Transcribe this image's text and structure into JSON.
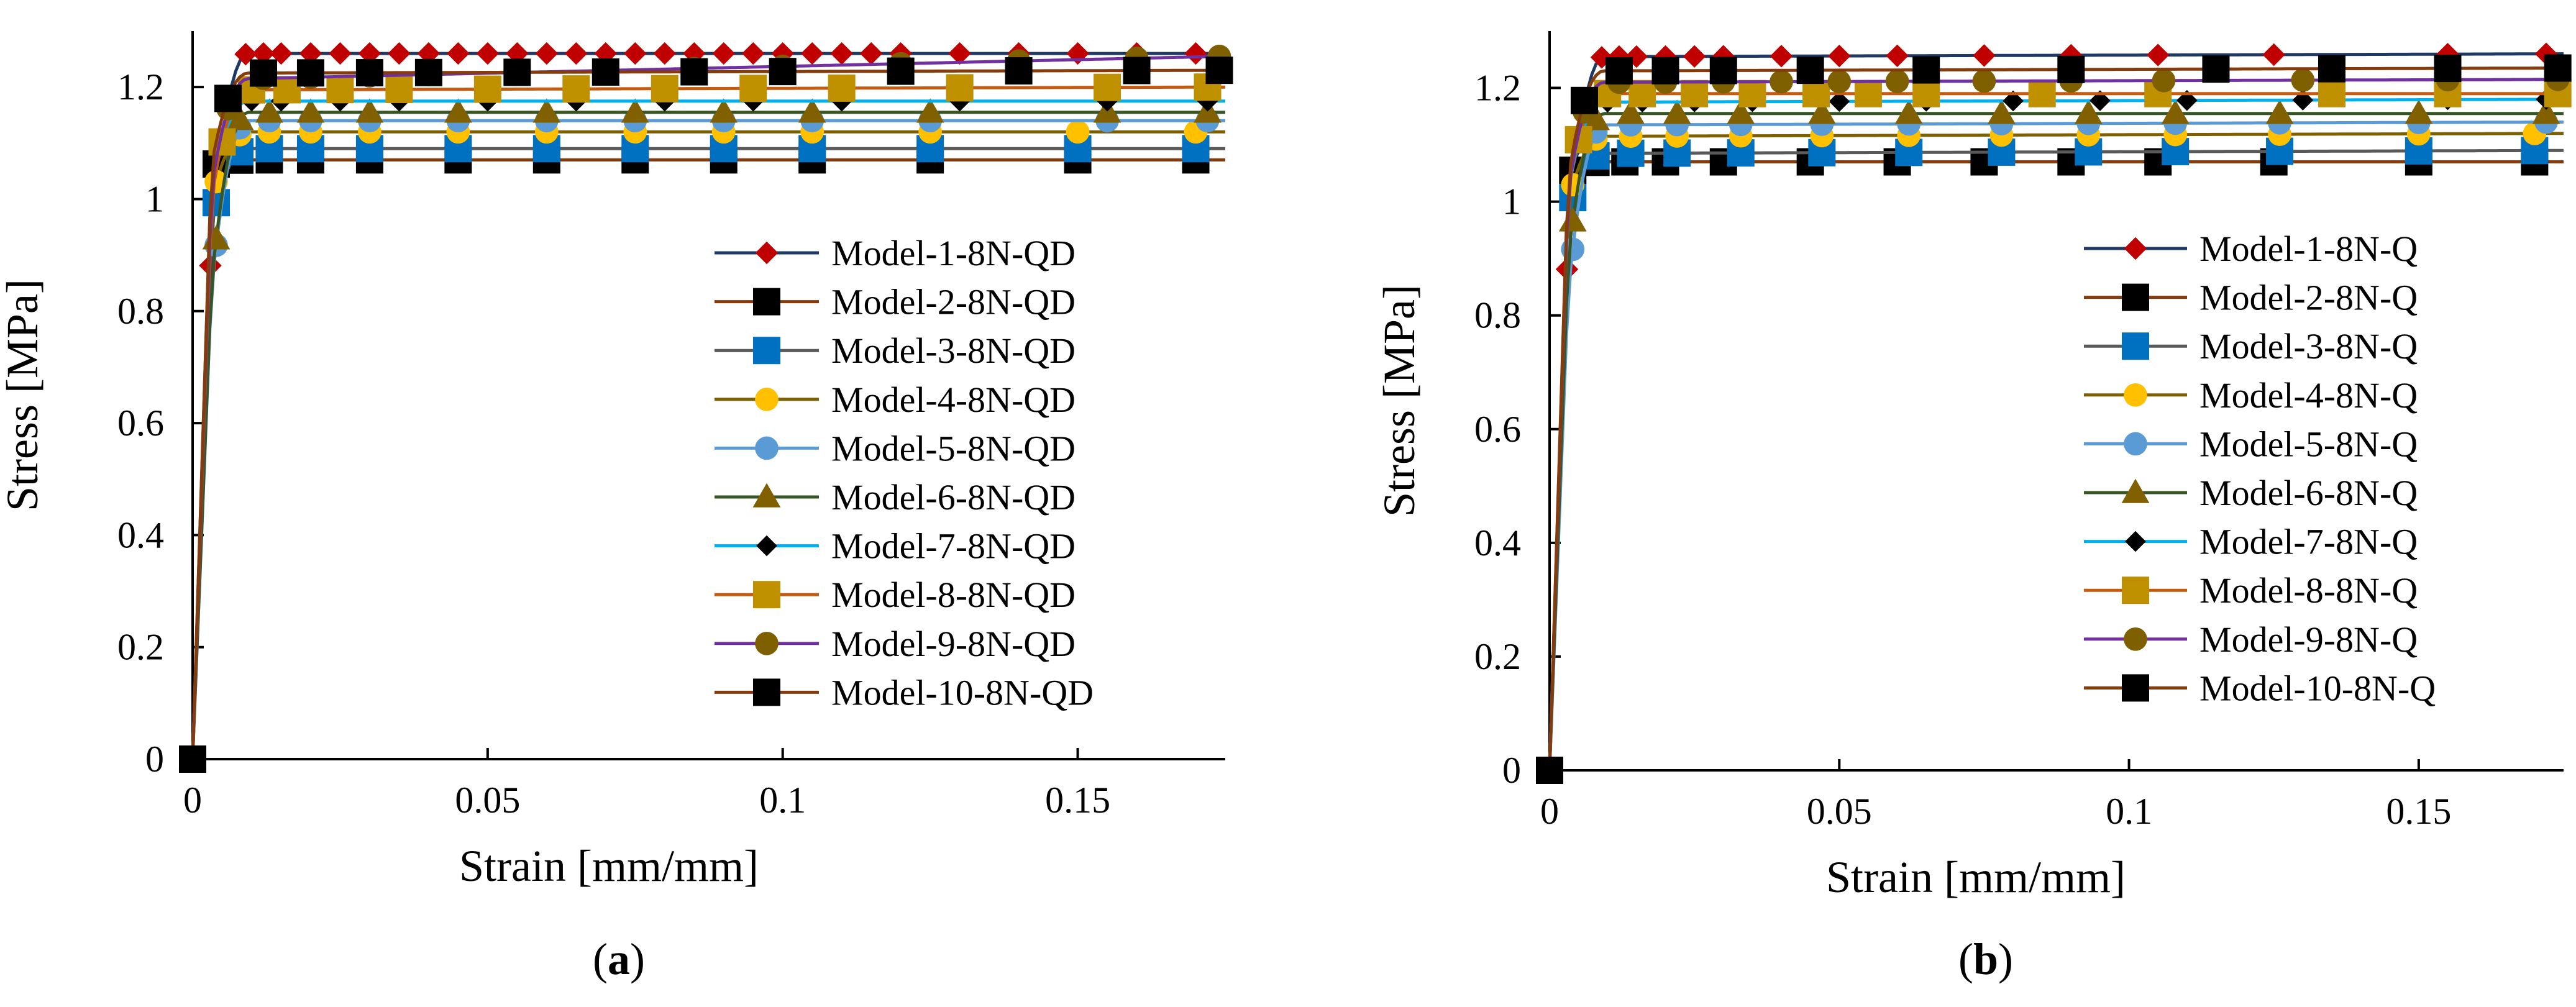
{
  "chart_data": [
    {
      "type": "line",
      "panel_label_open": "(",
      "panel_label_letter": "a",
      "panel_label_close": ")",
      "xlabel": "Strain [mm/mm]",
      "ylabel": "Stress [MPa]",
      "xlim": [
        0,
        0.175
      ],
      "ylim": [
        0,
        1.3
      ],
      "xticks": [
        0,
        0.05,
        0.1,
        0.15
      ],
      "xtick_labels": [
        "0",
        "0.05",
        "0.1",
        "0.15"
      ],
      "yticks": [
        0,
        0.2,
        0.4,
        0.6,
        0.8,
        1.0,
        1.2
      ],
      "ytick_labels": [
        "0",
        "0.2",
        "0.4",
        "0.6",
        "0.8",
        "1",
        "1.2"
      ],
      "legend_position": "lower-right",
      "series": [
        {
          "name": "Model-1-8N-QD",
          "line_color": "#1f3864",
          "marker": "diamond",
          "marker_color": "#c00000",
          "marker_size": 13,
          "yield": 0.94,
          "plateau": 1.26,
          "end": 1.26,
          "marker_x": [
            0.003,
            0.006,
            0.009,
            0.012,
            0.015,
            0.02,
            0.025,
            0.03,
            0.035,
            0.04,
            0.045,
            0.05,
            0.055,
            0.06,
            0.065,
            0.07,
            0.075,
            0.08,
            0.085,
            0.09,
            0.095,
            0.1,
            0.105,
            0.11,
            0.115,
            0.12,
            0.13,
            0.14,
            0.15,
            0.16,
            0.17
          ]
        },
        {
          "name": "Model-2-8N-QD",
          "line_color": "#843c0c",
          "marker": "square",
          "marker_color": "#000000",
          "marker_size": 22,
          "yield": 1.06,
          "plateau": 1.07,
          "end": 1.07,
          "marker_x": [
            0.004,
            0.008,
            0.013,
            0.02,
            0.03,
            0.045,
            0.06,
            0.075,
            0.09,
            0.105,
            0.125,
            0.15,
            0.17
          ]
        },
        {
          "name": "Model-3-8N-QD",
          "line_color": "#595959",
          "marker": "square",
          "marker_color": "#0070c0",
          "marker_size": 22,
          "yield": 0.96,
          "plateau": 1.09,
          "end": 1.09,
          "marker_x": [
            0.004,
            0.008,
            0.013,
            0.02,
            0.03,
            0.045,
            0.06,
            0.075,
            0.09,
            0.105,
            0.125,
            0.15,
            0.17
          ]
        },
        {
          "name": "Model-4-8N-QD",
          "line_color": "#7f6000",
          "marker": "circle",
          "marker_color": "#ffc000",
          "marker_size": 13,
          "yield": 1.0,
          "plateau": 1.12,
          "end": 1.12,
          "marker_x": [
            0.004,
            0.008,
            0.013,
            0.02,
            0.03,
            0.045,
            0.06,
            0.075,
            0.09,
            0.105,
            0.125,
            0.15,
            0.17
          ]
        },
        {
          "name": "Model-5-8N-QD",
          "line_color": "#5b9bd5",
          "marker": "circle",
          "marker_color": "#5b9bd5",
          "marker_size": 13,
          "yield": 0.84,
          "plateau": 1.14,
          "end": 1.14,
          "marker_x": [
            0.004,
            0.008,
            0.013,
            0.02,
            0.03,
            0.045,
            0.06,
            0.075,
            0.09,
            0.105,
            0.125,
            0.155,
            0.172
          ]
        },
        {
          "name": "Model-6-8N-QD",
          "line_color": "#375623",
          "marker": "triangle",
          "marker_color": "#806000",
          "marker_size": 14,
          "yield": 0.85,
          "plateau": 1.155,
          "end": 1.155,
          "marker_x": [
            0.004,
            0.008,
            0.013,
            0.02,
            0.03,
            0.045,
            0.06,
            0.075,
            0.09,
            0.105,
            0.125,
            0.155,
            0.172
          ]
        },
        {
          "name": "Model-7-8N-QD",
          "line_color": "#00b0f0",
          "marker": "diamond",
          "marker_color": "#000000",
          "marker_size": 12,
          "yield": 1.02,
          "plateau": 1.175,
          "end": 1.175,
          "marker_x": [
            0.005,
            0.01,
            0.015,
            0.025,
            0.035,
            0.05,
            0.065,
            0.08,
            0.095,
            0.11,
            0.13,
            0.155,
            0.172
          ]
        },
        {
          "name": "Model-8-8N-QD",
          "line_color": "#c55a11",
          "marker": "square",
          "marker_color": "#bf9000",
          "marker_size": 22,
          "yield": 1.0,
          "plateau": 1.195,
          "end": 1.2,
          "marker_x": [
            0.005,
            0.01,
            0.016,
            0.025,
            0.035,
            0.05,
            0.065,
            0.08,
            0.095,
            0.11,
            0.13,
            0.155,
            0.172
          ]
        },
        {
          "name": "Model-9-8N-QD",
          "line_color": "#7030a0",
          "marker": "circle",
          "marker_color": "#7f6000",
          "marker_size": 13,
          "yield": 1.02,
          "plateau": 1.215,
          "end": 1.255,
          "marker_x": [
            0.006,
            0.012,
            0.02,
            0.03,
            0.04,
            0.055,
            0.07,
            0.085,
            0.1,
            0.12,
            0.14,
            0.16,
            0.174
          ]
        },
        {
          "name": "Model-10-8N-QD",
          "line_color": "#843c0c",
          "marker": "square",
          "marker_color": "#000000",
          "marker_size": 22,
          "yield": 1.06,
          "plateau": 1.225,
          "end": 1.23,
          "marker_x": [
            0.006,
            0.012,
            0.02,
            0.03,
            0.04,
            0.055,
            0.07,
            0.085,
            0.1,
            0.12,
            0.14,
            0.16,
            0.174
          ]
        }
      ]
    },
    {
      "type": "line",
      "panel_label_open": "(",
      "panel_label_letter": "b",
      "panel_label_close": ")",
      "xlabel": "Strain [mm/mm]",
      "ylabel": "Stress [MPa]",
      "xlim": [
        0,
        0.175
      ],
      "ylim": [
        0,
        1.3
      ],
      "xticks": [
        0,
        0.05,
        0.1,
        0.15
      ],
      "xtick_labels": [
        "0",
        "0.05",
        "0.1",
        "0.15"
      ],
      "yticks": [
        0,
        0.2,
        0.4,
        0.6,
        0.8,
        1.0,
        1.2
      ],
      "ytick_labels": [
        "0",
        "0.2",
        "0.4",
        "0.6",
        "0.8",
        "1",
        "1.2"
      ],
      "legend_position": "lower-right",
      "series": [
        {
          "name": "Model-1-8N-Q",
          "line_color": "#1f3864",
          "marker": "diamond",
          "marker_color": "#c00000",
          "marker_size": 13,
          "yield": 0.94,
          "plateau": 1.255,
          "end": 1.26,
          "marker_x": [
            0.003,
            0.006,
            0.009,
            0.012,
            0.015,
            0.02,
            0.025,
            0.03,
            0.04,
            0.05,
            0.06,
            0.075,
            0.09,
            0.105,
            0.125,
            0.155,
            0.172
          ]
        },
        {
          "name": "Model-2-8N-Q",
          "line_color": "#843c0c",
          "marker": "square",
          "marker_color": "#000000",
          "marker_size": 22,
          "yield": 1.05,
          "plateau": 1.07,
          "end": 1.07,
          "marker_x": [
            0.004,
            0.008,
            0.013,
            0.02,
            0.03,
            0.045,
            0.06,
            0.075,
            0.09,
            0.105,
            0.125,
            0.15,
            0.17
          ]
        },
        {
          "name": "Model-3-8N-Q",
          "line_color": "#595959",
          "marker": "square",
          "marker_color": "#0070c0",
          "marker_size": 22,
          "yield": 0.98,
          "plateau": 1.085,
          "end": 1.09,
          "marker_x": [
            0.004,
            0.008,
            0.014,
            0.022,
            0.033,
            0.047,
            0.062,
            0.078,
            0.093,
            0.108,
            0.126,
            0.15,
            0.17
          ]
        },
        {
          "name": "Model-4-8N-Q",
          "line_color": "#7f6000",
          "marker": "circle",
          "marker_color": "#ffc000",
          "marker_size": 13,
          "yield": 1.0,
          "plateau": 1.115,
          "end": 1.12,
          "marker_x": [
            0.004,
            0.008,
            0.014,
            0.022,
            0.033,
            0.047,
            0.062,
            0.078,
            0.093,
            0.108,
            0.126,
            0.15,
            0.17
          ]
        },
        {
          "name": "Model-5-8N-Q",
          "line_color": "#5b9bd5",
          "marker": "circle",
          "marker_color": "#5b9bd5",
          "marker_size": 13,
          "yield": 0.84,
          "plateau": 1.135,
          "end": 1.14,
          "marker_x": [
            0.004,
            0.008,
            0.014,
            0.022,
            0.033,
            0.047,
            0.062,
            0.078,
            0.093,
            0.108,
            0.126,
            0.15,
            0.172
          ]
        },
        {
          "name": "Model-6-8N-Q",
          "line_color": "#375623",
          "marker": "triangle",
          "marker_color": "#806000",
          "marker_size": 14,
          "yield": 0.9,
          "plateau": 1.155,
          "end": 1.155,
          "marker_x": [
            0.004,
            0.008,
            0.014,
            0.022,
            0.033,
            0.047,
            0.062,
            0.078,
            0.093,
            0.108,
            0.126,
            0.15,
            0.172
          ]
        },
        {
          "name": "Model-7-8N-Q",
          "line_color": "#00b0f0",
          "marker": "diamond",
          "marker_color": "#000000",
          "marker_size": 12,
          "yield": 1.02,
          "plateau": 1.175,
          "end": 1.18,
          "marker_x": [
            0.005,
            0.01,
            0.016,
            0.025,
            0.035,
            0.05,
            0.065,
            0.08,
            0.095,
            0.11,
            0.13,
            0.155,
            0.172
          ]
        },
        {
          "name": "Model-8-8N-Q",
          "line_color": "#c55a11",
          "marker": "square",
          "marker_color": "#bf9000",
          "marker_size": 22,
          "yield": 1.02,
          "plateau": 1.19,
          "end": 1.19,
          "marker_x": [
            0.005,
            0.01,
            0.016,
            0.025,
            0.035,
            0.046,
            0.055,
            0.065,
            0.085,
            0.105,
            0.135,
            0.155,
            0.174
          ]
        },
        {
          "name": "Model-9-8N-Q",
          "line_color": "#7030a0",
          "marker": "circle",
          "marker_color": "#7f6000",
          "marker_size": 13,
          "yield": 1.02,
          "plateau": 1.21,
          "end": 1.215,
          "marker_x": [
            0.006,
            0.012,
            0.02,
            0.03,
            0.04,
            0.05,
            0.06,
            0.075,
            0.09,
            0.106,
            0.13,
            0.155,
            0.174
          ]
        },
        {
          "name": "Model-10-8N-Q",
          "line_color": "#843c0c",
          "marker": "square",
          "marker_color": "#000000",
          "marker_size": 22,
          "yield": 1.04,
          "plateau": 1.23,
          "end": 1.235,
          "marker_x": [
            0.006,
            0.012,
            0.02,
            0.03,
            0.045,
            0.065,
            0.09,
            0.115,
            0.135,
            0.155,
            0.174
          ]
        }
      ]
    }
  ]
}
